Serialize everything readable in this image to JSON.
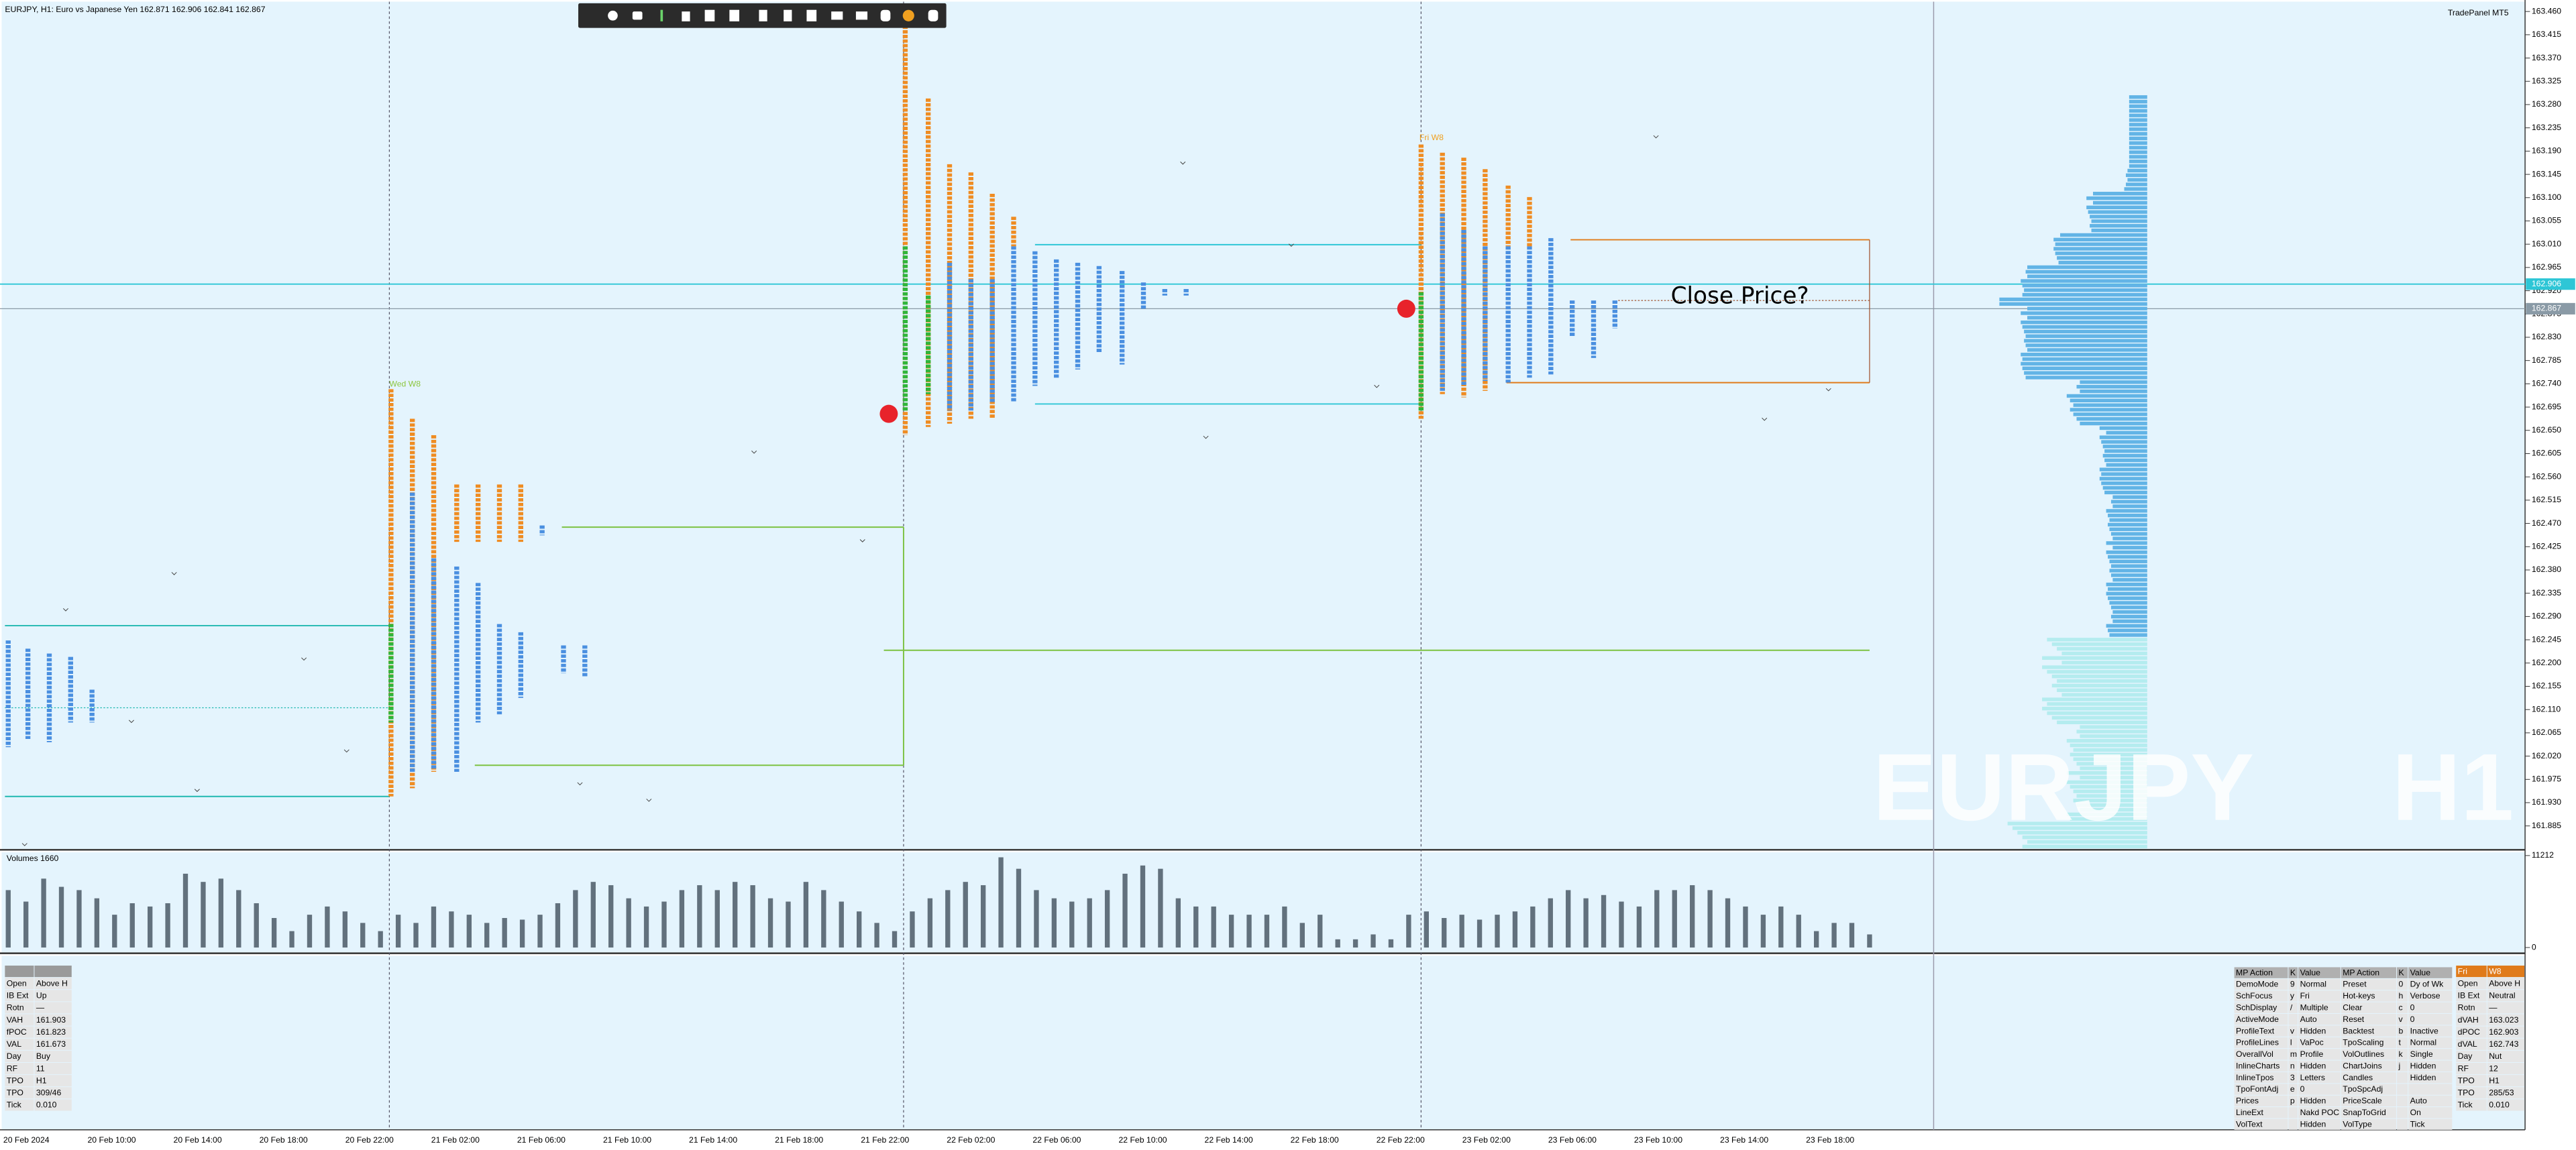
{
  "header": {
    "title": "EURJPY, H1:  Euro vs Japanese Yen  162.871 162.906 162.841 162.867",
    "panel": "TradePanel MT5"
  },
  "watermark": {
    "symbol": "EURJPY",
    "timeframe": "H1"
  },
  "labels": {
    "close_price": "Close Price?",
    "wed": "Wed W8",
    "fri": "Fri W8"
  },
  "price_axis": {
    "labels": [
      "163.460",
      "163.415",
      "163.370",
      "163.325",
      "163.280",
      "163.235",
      "163.190",
      "163.145",
      "163.100",
      "163.055",
      "163.010",
      "162.965",
      "162.920",
      "162.875",
      "162.830",
      "162.785",
      "162.740",
      "162.695",
      "162.650",
      "162.605",
      "162.560",
      "162.515",
      "162.470",
      "162.425",
      "162.380",
      "162.335",
      "162.290",
      "162.245",
      "162.200",
      "162.155",
      "162.110",
      "162.065",
      "162.020",
      "161.975",
      "161.930",
      "161.885"
    ],
    "bid": "162.906",
    "last": "162.867"
  },
  "time_axis": [
    "20 Feb 2024",
    "20 Feb 10:00",
    "20 Feb 14:00",
    "20 Feb 18:00",
    "20 Feb 22:00",
    "21 Feb 02:00",
    "21 Feb 06:00",
    "21 Feb 10:00",
    "21 Feb 14:00",
    "21 Feb 18:00",
    "21 Feb 22:00",
    "22 Feb 02:00",
    "22 Feb 06:00",
    "22 Feb 10:00",
    "22 Feb 14:00",
    "22 Feb 18:00",
    "22 Feb 22:00",
    "23 Feb 02:00",
    "23 Feb 06:00",
    "23 Feb 10:00",
    "23 Feb 14:00",
    "23 Feb 18:00"
  ],
  "volumes": {
    "title": "Volumes 1660",
    "ylim": [
      0,
      11212
    ],
    "yticks": [
      11212,
      0
    ],
    "values": [
      7000,
      5600,
      8400,
      7400,
      7000,
      6000,
      4000,
      5400,
      5000,
      5400,
      9000,
      8000,
      8400,
      7000,
      5400,
      3600,
      2000,
      4000,
      5000,
      4400,
      3000,
      2000,
      4000,
      3000,
      5000,
      4400,
      4000,
      3000,
      3600,
      3400,
      4000,
      5400,
      7000,
      8000,
      7600,
      6000,
      5000,
      5600,
      7000,
      7600,
      7000,
      8000,
      7600,
      6000,
      5600,
      8000,
      7000,
      5600,
      4400,
      3000,
      2000,
      4400,
      6000,
      7000,
      8000,
      7600,
      11000,
      9600,
      7000,
      6000,
      5600,
      6000,
      7000,
      9000,
      10000,
      9600,
      6000,
      5000,
      5000,
      4000,
      4000,
      4000,
      5000,
      3000,
      4000,
      1000,
      1000,
      1600,
      1000,
      4000,
      4400,
      3600,
      4000,
      3400,
      4000,
      4400,
      5000,
      6000,
      7000,
      6000,
      6400,
      5600,
      5000,
      7000,
      7000,
      7600,
      7000,
      6000,
      5000,
      4000,
      5000,
      4000,
      2000,
      3000,
      3000,
      1600
    ]
  },
  "left_table": {
    "rows": [
      [
        "Open",
        "Above H"
      ],
      [
        "IB Ext",
        "Up"
      ],
      [
        "Rotn",
        "—"
      ],
      [
        "VAH",
        "161.903"
      ],
      [
        "fPOC",
        "161.823"
      ],
      [
        "VAL",
        "161.673"
      ],
      [
        "Day",
        "Buy"
      ],
      [
        "RF",
        "11"
      ],
      [
        "TPO",
        "H1"
      ],
      [
        "TPO",
        "309/46"
      ],
      [
        "Tick",
        "0.010"
      ]
    ]
  },
  "mp_table": {
    "header": [
      "MP Action",
      "K",
      "Value",
      "MP Action",
      "K",
      "Value"
    ],
    "rows": [
      [
        "DemoMode",
        "9",
        "Normal",
        "Preset",
        "0",
        "Dy of Wk"
      ],
      [
        "SchFocus",
        "y",
        "Fri",
        "Hot-keys",
        "h",
        "Verbose"
      ],
      [
        "SchDisplay",
        "/",
        "Multiple",
        "Clear",
        "c",
        "0"
      ],
      [
        "ActiveMode",
        null,
        "Auto",
        "Reset",
        "v",
        "0"
      ],
      [
        "ProfileText",
        "v",
        "Hidden",
        "Backtest",
        "b",
        "Inactive"
      ],
      [
        "ProfileLines",
        "l",
        "VaPoc",
        "TpoScaling",
        "t",
        "Normal"
      ],
      [
        "OverallVol",
        "m",
        "Profile",
        "VolOutlines",
        "k",
        "Single"
      ],
      [
        "InlineCharts",
        "n",
        "Hidden",
        "ChartJoins",
        "j",
        "Hidden"
      ],
      [
        "InlineTpos",
        "3",
        "Letters",
        "Candles",
        null,
        "Hidden"
      ],
      [
        "TpoFontAdj",
        "e",
        "0",
        "TpoSpcAdj",
        null,
        null
      ],
      [
        "Prices",
        "p",
        "Hidden",
        "PriceScale",
        null,
        "Auto"
      ],
      [
        "LineExt",
        null,
        "Nakd POC",
        "SnapToGrid",
        null,
        "On"
      ],
      [
        "VolText",
        null,
        "Hidden",
        "VolType",
        null,
        "Tick"
      ]
    ]
  },
  "session_table": {
    "header": [
      "Fri",
      "W8"
    ],
    "rows": [
      [
        "Open",
        "Above H"
      ],
      [
        "IB Ext",
        "Neutral"
      ],
      [
        "Rotn",
        "—"
      ],
      [
        "dVAH",
        "163.023"
      ],
      [
        "dPOC",
        "162.903"
      ],
      [
        "dVAL",
        "162.743"
      ],
      [
        "Day",
        "Nut"
      ],
      [
        "RF",
        "12"
      ],
      [
        "TPO",
        "H1"
      ],
      [
        "TPO",
        "285/53"
      ],
      [
        "Tick",
        "0.010"
      ]
    ]
  }
}
